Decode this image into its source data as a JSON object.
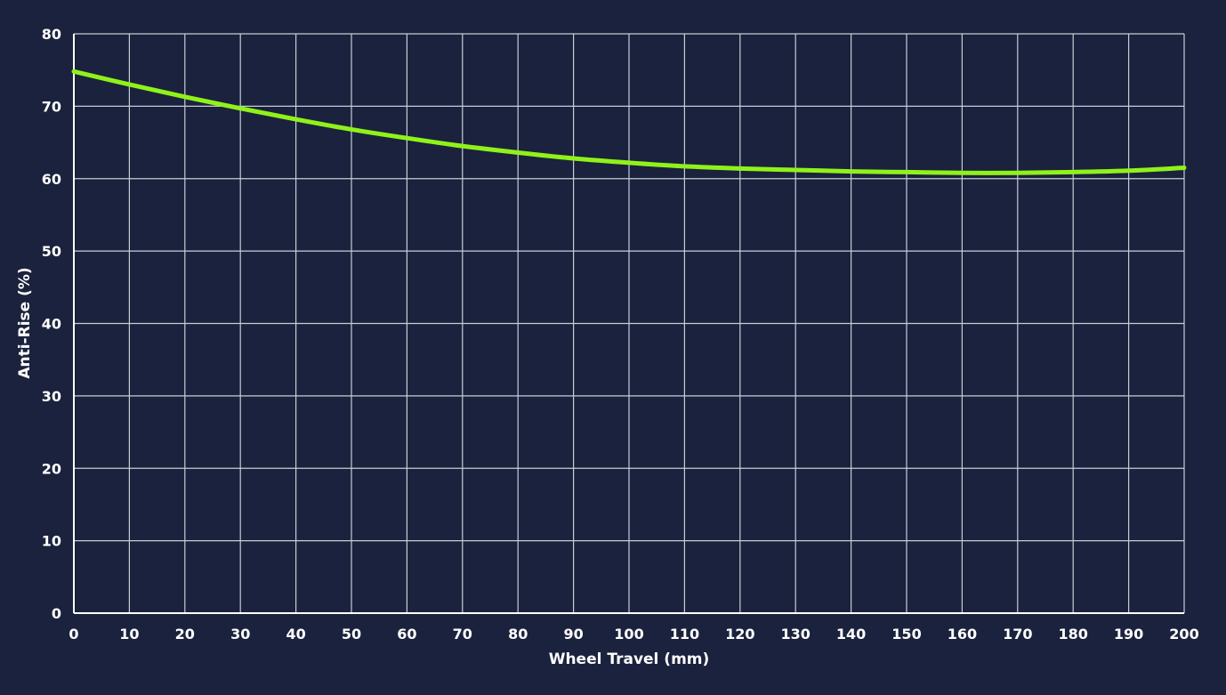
{
  "colors": {
    "background": "#1b223d",
    "grid": "#c8ccd6",
    "axis": "#ffffff",
    "series": "#8ff21a",
    "text": "#ffffff"
  },
  "chart_data": {
    "type": "line",
    "title": "",
    "xlabel": "Wheel Travel (mm)",
    "ylabel": "Anti-Rise (%)",
    "xlim": [
      0,
      200
    ],
    "ylim": [
      0,
      80
    ],
    "grid": true,
    "legend": "none",
    "x_ticks": [
      0,
      10,
      20,
      30,
      40,
      50,
      60,
      70,
      80,
      90,
      100,
      110,
      120,
      130,
      140,
      150,
      160,
      170,
      180,
      190,
      200
    ],
    "y_ticks": [
      0,
      10,
      20,
      30,
      40,
      50,
      60,
      70,
      80
    ],
    "series": [
      {
        "x": [
          0,
          10,
          20,
          30,
          40,
          50,
          60,
          70,
          80,
          90,
          100,
          110,
          120,
          130,
          140,
          150,
          160,
          170,
          180,
          190,
          200
        ],
        "y": [
          74.8,
          73.0,
          71.3,
          69.7,
          68.2,
          66.8,
          65.6,
          64.5,
          63.6,
          62.8,
          62.2,
          61.7,
          61.4,
          61.2,
          61.0,
          60.9,
          60.8,
          60.8,
          60.9,
          61.1,
          61.5
        ]
      }
    ]
  }
}
